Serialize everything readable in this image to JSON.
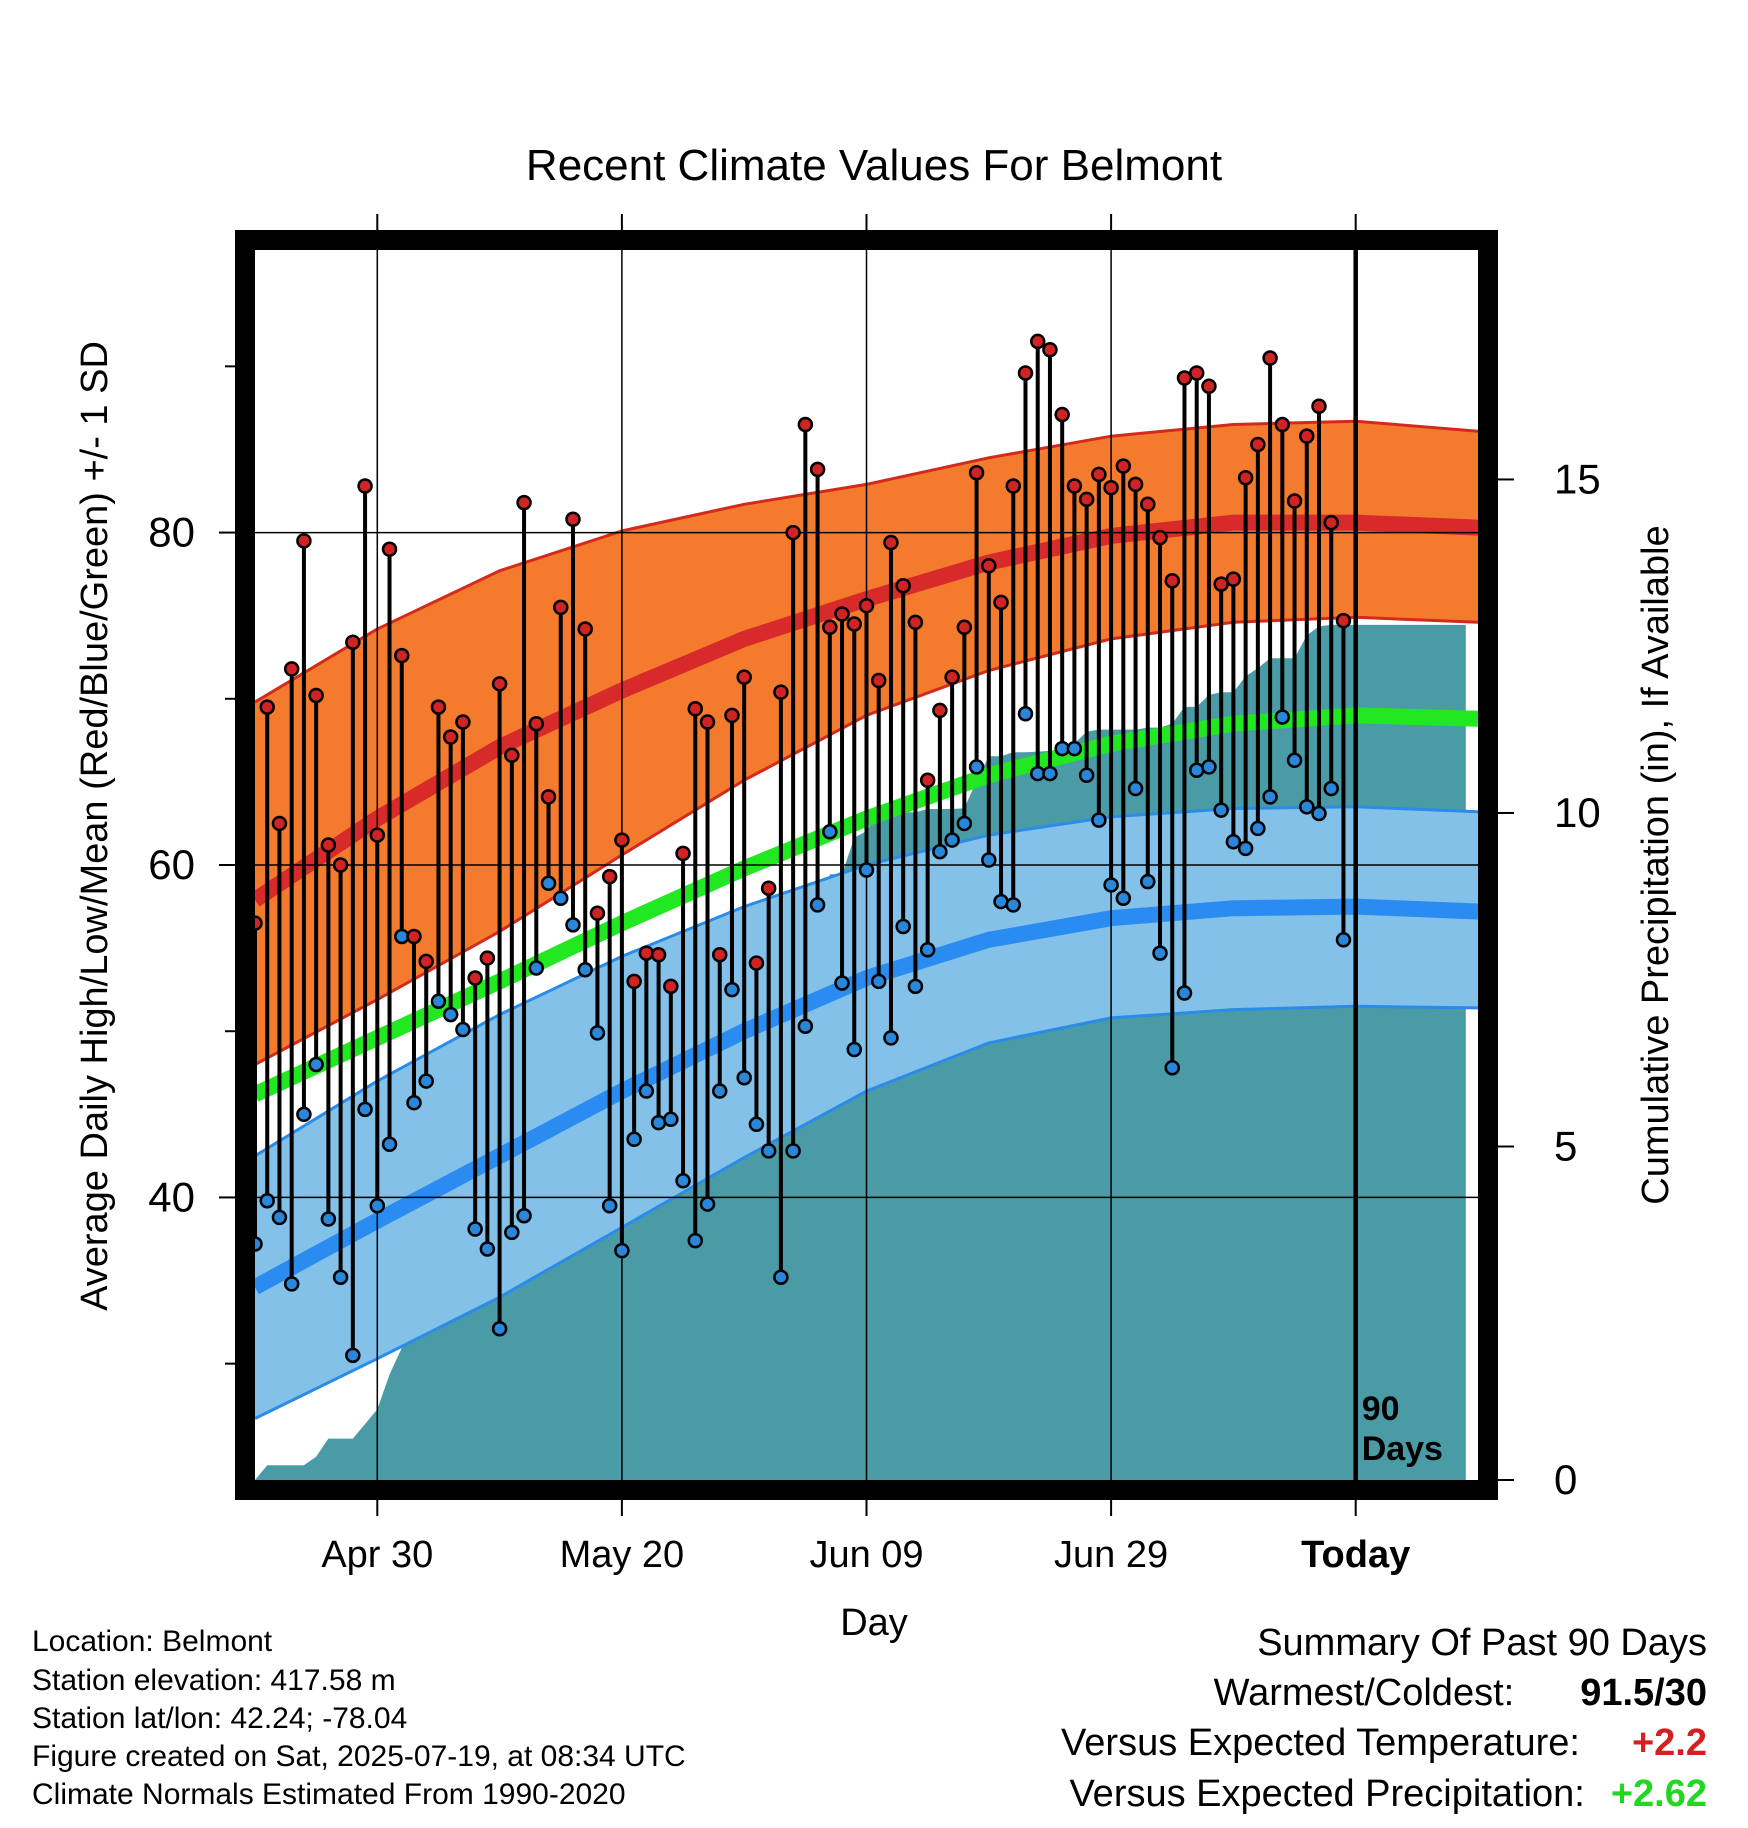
{
  "chart_data": {
    "type": "line",
    "title": "Recent Climate Values For Belmont",
    "xlabel": "Day",
    "ylabel": "Average Daily High/Low/Mean (Red/Blue/Green) +/- 1 SD",
    "y2label": "Cumulative Precipitation (in), If Available",
    "x_range": [
      "2025-04-20",
      "2025-07-29"
    ],
    "ylim": [
      23,
      97
    ],
    "y2lim": [
      0,
      18.44
    ],
    "x_ticks": [
      {
        "date": "2025-04-30",
        "label": "Apr 30"
      },
      {
        "date": "2025-05-20",
        "label": "May 20"
      },
      {
        "date": "2025-06-09",
        "label": "Jun 09"
      },
      {
        "date": "2025-06-29",
        "label": "Jun 29"
      },
      {
        "date": "2025-07-19",
        "label": "Today"
      }
    ],
    "y_ticks": [
      "40",
      "60",
      "80"
    ],
    "y_minor_ticks": [
      30,
      50,
      70,
      90
    ],
    "y2_ticks": [
      "0",
      "5",
      "10",
      "15"
    ],
    "grid": true,
    "today_marker": {
      "date": "2025-07-19",
      "label_line1": "90",
      "label_line2": "Days"
    },
    "colors": {
      "high_band": "#F47B2E",
      "high_band_edge": "#D42A1C",
      "high_mean": "#D82A2A",
      "low_band": "#84C1E8",
      "low_band_edge": "#2A8CE8",
      "low_mean": "#2A8CF0",
      "mean": "#22E822",
      "precip": "#4A9BA6",
      "high_dot": "#D02424",
      "low_dot": "#2A86D8"
    },
    "normals": {
      "days": [
        0,
        10,
        20,
        30,
        40,
        50,
        60,
        70,
        80,
        90,
        100
      ],
      "high_mean": [
        57.9,
        62.8,
        67.1,
        70.5,
        73.6,
        76.0,
        78.2,
        79.8,
        80.6,
        80.6,
        80.3
      ],
      "high_sd_upper": [
        69.8,
        74.2,
        77.7,
        80.1,
        81.7,
        82.9,
        84.5,
        85.8,
        86.5,
        86.7,
        86.1
      ],
      "high_sd_lower": [
        48.0,
        51.9,
        56.0,
        60.6,
        65.1,
        69.0,
        71.7,
        73.6,
        74.6,
        74.9,
        74.6
      ],
      "mean": [
        46.2,
        49.6,
        53.0,
        56.5,
        59.8,
        62.8,
        65.4,
        67.3,
        68.5,
        69.0,
        68.8
      ],
      "low_mean": [
        34.6,
        38.6,
        42.5,
        46.4,
        50.0,
        53.2,
        55.5,
        56.8,
        57.4,
        57.5,
        57.2
      ],
      "low_sd_upper": [
        42.5,
        47.0,
        51.0,
        54.5,
        57.5,
        60.0,
        61.8,
        62.9,
        63.4,
        63.5,
        63.2
      ],
      "low_sd_lower": [
        26.7,
        30.3,
        34.0,
        38.2,
        42.4,
        46.4,
        49.3,
        50.8,
        51.3,
        51.5,
        51.4
      ]
    },
    "series": [
      {
        "name": "High",
        "values": [
          56.5,
          69.5,
          62.5,
          71.8,
          79.5,
          70.2,
          61.2,
          60.0,
          73.4,
          82.8,
          61.8,
          79.0,
          72.6,
          55.7,
          54.2,
          69.5,
          67.7,
          68.6,
          53.2,
          54.4,
          70.9,
          66.6,
          81.8,
          68.5,
          64.1,
          75.5,
          80.8,
          74.2,
          57.1,
          59.3,
          61.5,
          53.0,
          54.7,
          54.6,
          52.7,
          60.7,
          69.4,
          68.6,
          54.6,
          69.0,
          71.3,
          54.1,
          58.6,
          70.4,
          80.0,
          86.5,
          83.8,
          74.3,
          75.1,
          74.5,
          75.6,
          71.1,
          79.4,
          76.8,
          74.6,
          65.1,
          69.3,
          71.3,
          74.3,
          83.6,
          78.0,
          75.8,
          82.8,
          89.6,
          91.5,
          91.0,
          87.1,
          82.8,
          82.0,
          83.5,
          82.7,
          84.0,
          82.9,
          81.7,
          79.7,
          77.1,
          89.3,
          89.6,
          88.8,
          76.9,
          77.2,
          83.3,
          85.3,
          90.5,
          86.5,
          81.9,
          85.8,
          87.6,
          80.6,
          74.7
        ]
      },
      {
        "name": "Low",
        "values": [
          37.2,
          39.8,
          38.8,
          34.8,
          45.0,
          48.0,
          38.7,
          35.2,
          30.5,
          45.3,
          39.5,
          43.2,
          55.7,
          45.7,
          47.0,
          51.8,
          51.0,
          50.1,
          38.1,
          36.9,
          32.1,
          37.9,
          38.9,
          53.8,
          58.9,
          58.0,
          56.4,
          53.7,
          49.9,
          39.5,
          36.8,
          43.5,
          46.4,
          44.5,
          44.7,
          41.0,
          37.4,
          39.6,
          46.4,
          52.5,
          47.2,
          44.4,
          42.8,
          35.2,
          42.8,
          50.3,
          57.6,
          62.0,
          52.9,
          48.9,
          59.7,
          53.0,
          49.6,
          56.3,
          52.7,
          54.9,
          60.8,
          61.5,
          62.5,
          65.9,
          60.3,
          57.8,
          57.6,
          69.1,
          65.5,
          65.5,
          67.0,
          67.0,
          65.4,
          62.7,
          58.8,
          58.0,
          64.6,
          59.0,
          54.7,
          47.8,
          52.3,
          65.7,
          65.9,
          63.3,
          61.4,
          61.0,
          62.2,
          64.1,
          68.9,
          66.3,
          63.5,
          63.1,
          64.6,
          55.5
        ]
      },
      {
        "name": "Cumulative Precipitation",
        "values": [
          0.0,
          0.22,
          0.22,
          0.22,
          0.22,
          0.35,
          0.62,
          0.62,
          0.62,
          0.84,
          1.06,
          1.58,
          1.98,
          2.72,
          3.5,
          4.31,
          4.52,
          4.52,
          4.52,
          4.52,
          4.52,
          4.52,
          4.52,
          4.72,
          4.72,
          4.83,
          5.1,
          5.11,
          5.11,
          5.11,
          5.78,
          6.1,
          6.1,
          6.1,
          6.2,
          6.2,
          6.21,
          6.21,
          6.21,
          6.77,
          6.77,
          6.77,
          6.77,
          6.83,
          7.04,
          7.37,
          7.85,
          9.08,
          9.08,
          9.63,
          9.73,
          10.01,
          10.01,
          10.01,
          10.01,
          10.06,
          10.06,
          10.06,
          10.07,
          10.48,
          10.85,
          10.85,
          10.91,
          10.91,
          10.92,
          10.93,
          10.93,
          11.04,
          11.22,
          11.25,
          11.25,
          11.25,
          11.25,
          11.28,
          11.28,
          11.34,
          11.59,
          11.59,
          11.77,
          11.81,
          11.81,
          12.05,
          12.17,
          12.32,
          12.32,
          12.32,
          12.66,
          12.8,
          12.82,
          12.82,
          12.82,
          12.82,
          12.82,
          12.82,
          12.82,
          12.82,
          12.82,
          12.82,
          12.82,
          12.82
        ]
      }
    ]
  },
  "info": {
    "location": "Location: Belmont",
    "elevation": "Station elevation: 417.58 m",
    "latlon": "Station lat/lon: 42.24; -78.04",
    "created": "Figure created on Sat, 2025-07-19, at 08:34 UTC",
    "normals": "Climate Normals Estimated From 1990-2020"
  },
  "summary": {
    "heading": "Summary Of Past 90 Days",
    "warmest_coldest_label": "Warmest/Coldest:",
    "warmest_coldest_value": "91.5/30",
    "temp_label": "Versus Expected Temperature:",
    "temp_value": "+2.2",
    "temp_color": "#D42020",
    "precip_label": "Versus Expected Precipitation:",
    "precip_value": "+2.62",
    "precip_color": "#22D622"
  }
}
